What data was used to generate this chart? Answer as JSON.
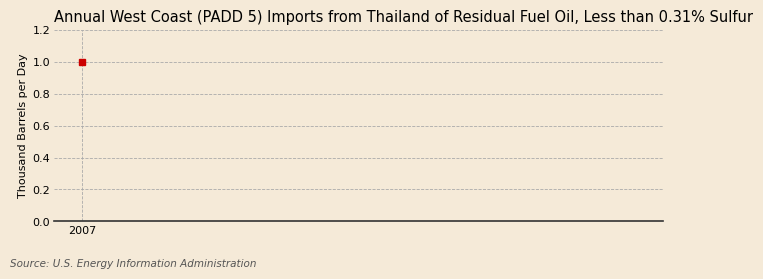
{
  "title": "Annual West Coast (PADD 5) Imports from Thailand of Residual Fuel Oil, Less than 0.31% Sulfur",
  "ylabel": "Thousand Barrels per Day",
  "source": "Source: U.S. Energy Information Administration",
  "x_data": [
    2007
  ],
  "y_data": [
    1.0
  ],
  "xlim": [
    2006.5,
    2017.5
  ],
  "ylim": [
    0.0,
    1.2
  ],
  "yticks": [
    0.0,
    0.2,
    0.4,
    0.6,
    0.8,
    1.0,
    1.2
  ],
  "xticks": [
    2007
  ],
  "background_color": "#f5ead8",
  "plot_bg_color": "#f5ead8",
  "grid_color": "#aaaaaa",
  "vline_color": "#aaaaaa",
  "point_color": "#cc0000",
  "point_size": 4,
  "title_fontsize": 10.5,
  "label_fontsize": 8,
  "tick_fontsize": 8,
  "source_fontsize": 7.5
}
